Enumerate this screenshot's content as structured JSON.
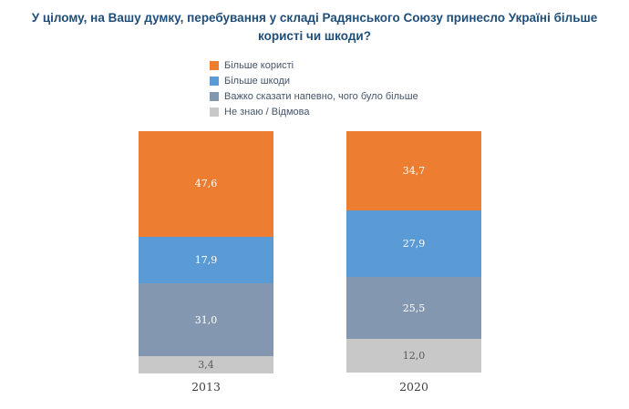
{
  "chart_data": {
    "type": "bar",
    "subtype": "stacked-100-percent",
    "title": "У цілому, на Вашу думку, перебування у складі Радянського Союзу принесло Україні більше користі чи шкоди?",
    "categories": [
      "2013",
      "2020"
    ],
    "series": [
      {
        "name": "Більше користі",
        "color": "#ED7D31",
        "label_color": "#FFFFFF",
        "values": [
          47.6,
          34.7
        ]
      },
      {
        "name": "Більше шкоди",
        "color": "#5B9BD5",
        "label_color": "#FFFFFF",
        "values": [
          17.9,
          27.9
        ]
      },
      {
        "name": "Важко сказати напевно, чого було більше",
        "color": "#8497B0",
        "label_color": "#FFFFFF",
        "values": [
          31.0,
          25.5
        ]
      },
      {
        "name": "Не знаю / Відмова",
        "color": "#C8C8C8",
        "label_color": "#595959",
        "values": [
          3.4,
          12.0
        ]
      }
    ],
    "value_labels": [
      [
        "47,6",
        "17,9",
        "31,0",
        "3,4"
      ],
      [
        "34,7",
        "27,9",
        "25,5",
        "12,0"
      ]
    ],
    "ylim": [
      0,
      100
    ],
    "grid": false,
    "legend_position": "top-left-above-plot",
    "colors": {
      "title_text": "#1F4E79",
      "legend_text": "#44546A",
      "axis_text": "#404040",
      "background": "#FFFFFF"
    }
  }
}
